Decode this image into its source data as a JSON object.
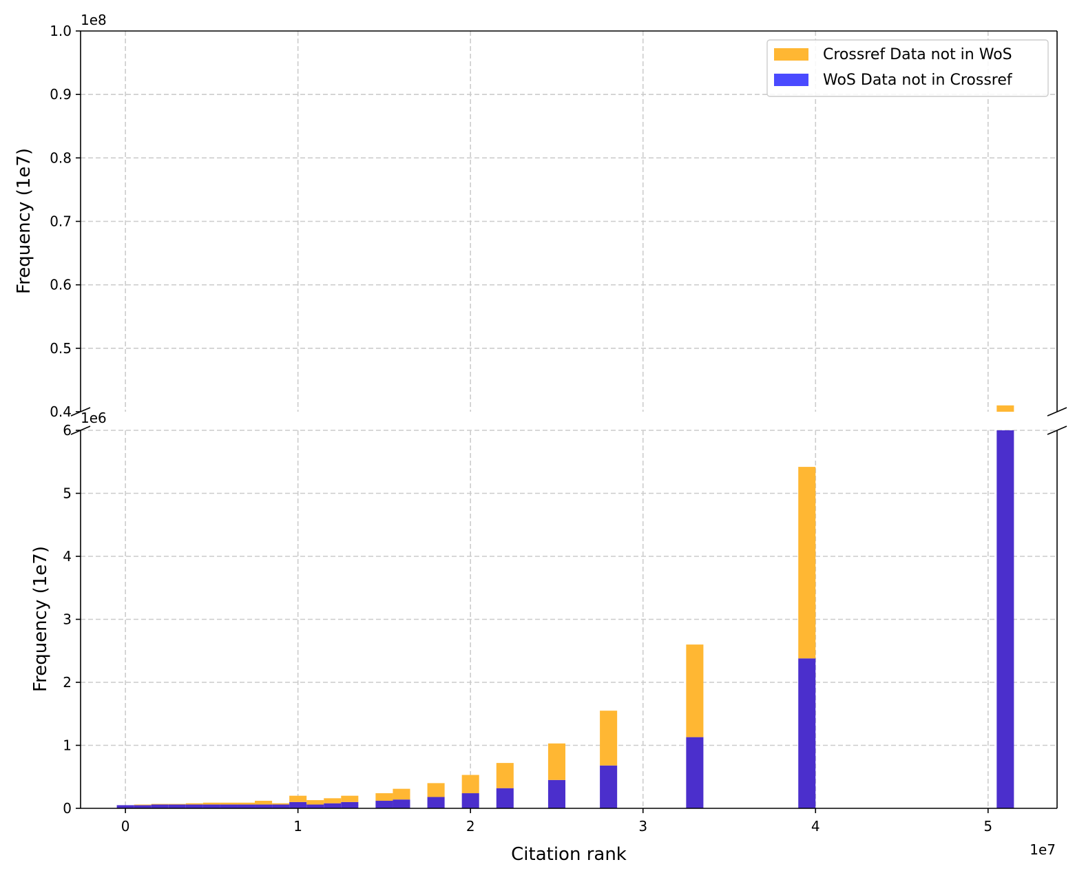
{
  "chart_data": {
    "type": "bar",
    "stacked": true,
    "broken_y_axis": true,
    "xlabel": "Citation rank",
    "ylabel": "Frequency (1e7)",
    "x_offset_label": "1e7",
    "x_ticks": [
      "0",
      "1",
      "2",
      "3",
      "4",
      "5"
    ],
    "xlim": [
      -0.26,
      5.4
    ],
    "upper_panel": {
      "offset_label": "1e8",
      "ylim": [
        0.4,
        1.0
      ],
      "y_ticks": [
        "0.4",
        "0.5",
        "0.6",
        "0.7",
        "0.8",
        "0.9",
        "1.0"
      ]
    },
    "lower_panel": {
      "offset_label": "1e6",
      "ylim": [
        0,
        6
      ],
      "y_ticks": [
        "0",
        "1",
        "2",
        "3",
        "4",
        "5",
        "6"
      ]
    },
    "grid": true,
    "legend_position": "top-right",
    "colors": {
      "crossref": "#FFB733",
      "wos": "#4B2FCC",
      "wos_legend": "#4A4AFF"
    },
    "bar_width": 0.1,
    "x_positions_1e7": [
      0.0,
      0.1,
      0.2,
      0.3,
      0.4,
      0.5,
      0.6,
      0.7,
      0.8,
      0.9,
      1.0,
      1.1,
      1.2,
      1.3,
      1.5,
      1.6,
      1.8,
      2.0,
      2.2,
      2.5,
      2.8,
      3.3,
      3.95,
      5.1
    ],
    "series": [
      {
        "name": "WoS Data not in Crossref",
        "values_1e6": [
          0.05,
          0.05,
          0.06,
          0.06,
          0.06,
          0.06,
          0.06,
          0.06,
          0.06,
          0.06,
          0.1,
          0.06,
          0.08,
          0.1,
          0.12,
          0.14,
          0.18,
          0.24,
          0.32,
          0.45,
          0.68,
          1.13,
          2.38,
          6.0
        ]
      },
      {
        "name": "Crossref Data not in WoS",
        "values_1e6": [
          0.0,
          0.01,
          0.01,
          0.01,
          0.02,
          0.03,
          0.03,
          0.03,
          0.06,
          0.02,
          0.1,
          0.07,
          0.08,
          0.1,
          0.12,
          0.17,
          0.22,
          0.29,
          0.4,
          0.58,
          0.87,
          1.47,
          3.04,
          35.0
        ]
      }
    ]
  }
}
